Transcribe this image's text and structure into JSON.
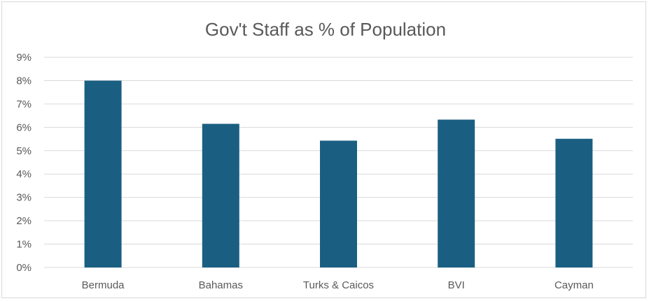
{
  "chart_data": {
    "type": "bar",
    "title": "Gov't Staff as % of Population",
    "categories": [
      "Bermuda",
      "Bahamas",
      "Turks & Caicos",
      "BVI",
      "Cayman"
    ],
    "values": [
      8.0,
      6.15,
      5.43,
      6.33,
      5.51
    ],
    "ylim": [
      0,
      9
    ],
    "yticks": [
      "0%",
      "1%",
      "2%",
      "3%",
      "4%",
      "5%",
      "6%",
      "7%",
      "8%",
      "9%"
    ],
    "grid": true,
    "bar_color": "#1a5f82",
    "xlabel": "",
    "ylabel": ""
  }
}
